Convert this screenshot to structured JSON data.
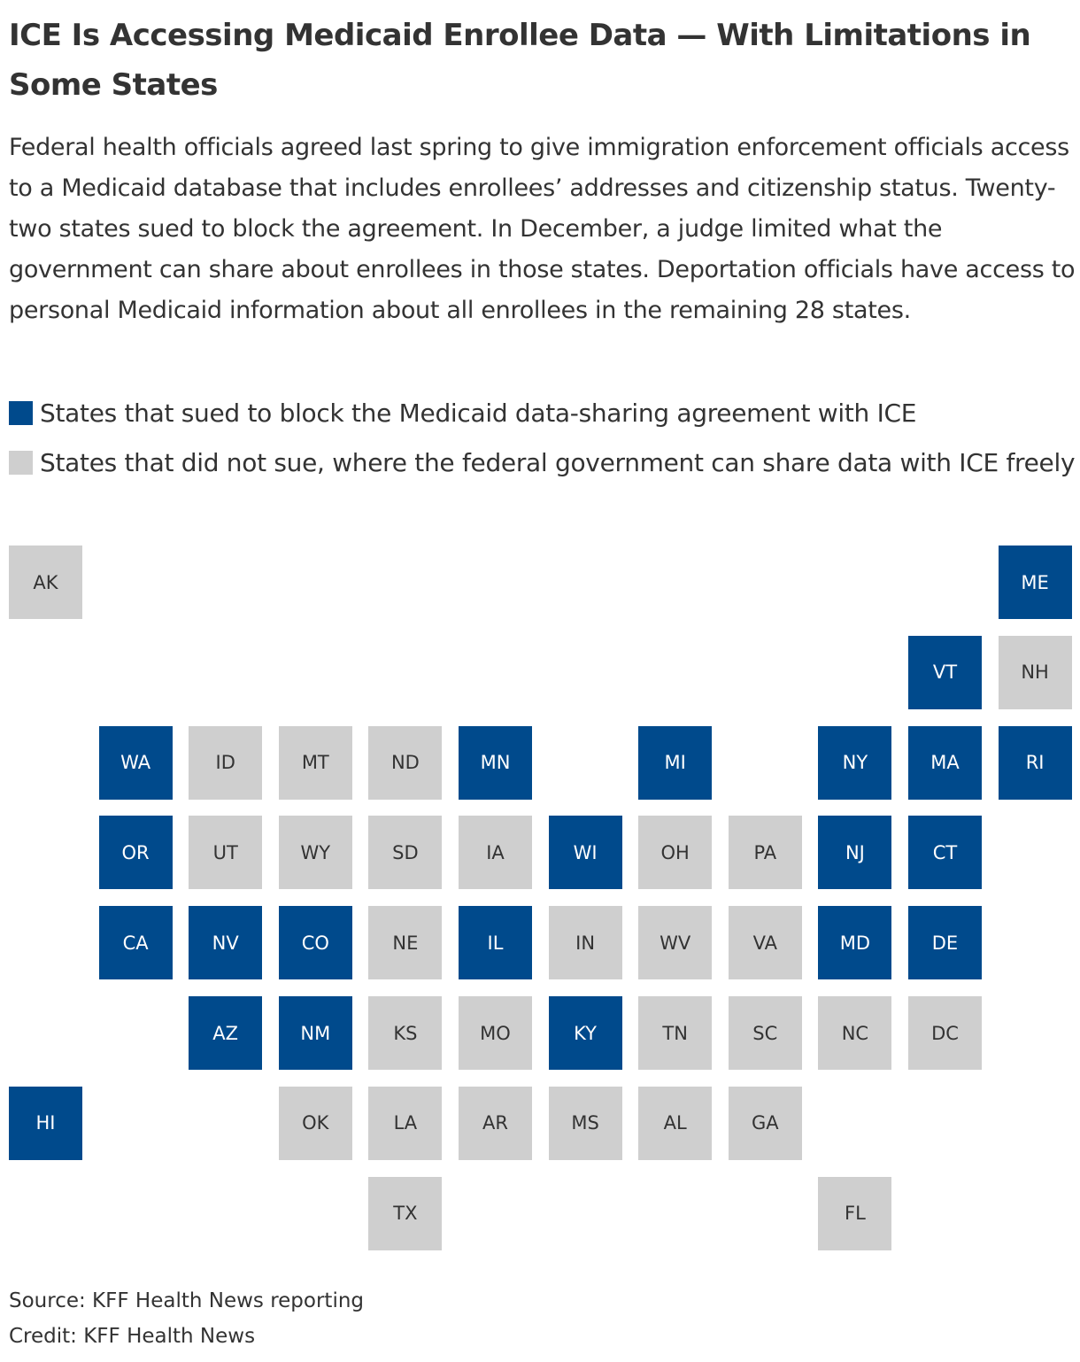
{
  "title": "ICE Is Accessing Medicaid Enrollee Data — With Limitations in Some States",
  "description": "Federal health officials agreed last spring to give immigration enforcement officials access to a Medicaid database that includes enrollees’ addresses and citizenship status. Twenty-two states sued to block the agreement. In December, a judge limited what the government can share about enrollees in those states. Deportation officials have access to personal Medicaid information about all enrollees in the remaining 28 states.",
  "legend": [
    {
      "label": "States that sued to block the Medicaid data-sharing agreement with ICE",
      "color": "#004a8c",
      "text_color": "#ffffff"
    },
    {
      "label": "States that did not sue, where the federal government can share data with ICE freely",
      "color": "#cfcfcf",
      "text_color": "#333333"
    }
  ],
  "tiles": [
    {
      "label": "AK",
      "group": 1
    },
    {
      "label": "ME",
      "group": 0
    },
    {
      "label": "VT",
      "group": 0
    },
    {
      "label": "NH",
      "group": 1
    },
    {
      "label": "WA",
      "group": 0
    },
    {
      "label": "ID",
      "group": 1
    },
    {
      "label": "MT",
      "group": 1
    },
    {
      "label": "ND",
      "group": 1
    },
    {
      "label": "MN",
      "group": 0
    },
    {
      "label": "MI",
      "group": 0
    },
    {
      "label": "NY",
      "group": 0
    },
    {
      "label": "MA",
      "group": 0
    },
    {
      "label": "RI",
      "group": 0
    },
    {
      "label": "OR",
      "group": 0
    },
    {
      "label": "UT",
      "group": 1
    },
    {
      "label": "WY",
      "group": 1
    },
    {
      "label": "SD",
      "group": 1
    },
    {
      "label": "IA",
      "group": 1
    },
    {
      "label": "WI",
      "group": 0
    },
    {
      "label": "OH",
      "group": 1
    },
    {
      "label": "PA",
      "group": 1
    },
    {
      "label": "NJ",
      "group": 0
    },
    {
      "label": "CT",
      "group": 0
    },
    {
      "label": "CA",
      "group": 0
    },
    {
      "label": "NV",
      "group": 0
    },
    {
      "label": "CO",
      "group": 0
    },
    {
      "label": "NE",
      "group": 1
    },
    {
      "label": "IL",
      "group": 0
    },
    {
      "label": "IN",
      "group": 1
    },
    {
      "label": "WV",
      "group": 1
    },
    {
      "label": "VA",
      "group": 1
    },
    {
      "label": "MD",
      "group": 0
    },
    {
      "label": "DE",
      "group": 0
    },
    {
      "label": "AZ",
      "group": 0
    },
    {
      "label": "NM",
      "group": 0
    },
    {
      "label": "KS",
      "group": 1
    },
    {
      "label": "MO",
      "group": 1
    },
    {
      "label": "KY",
      "group": 0
    },
    {
      "label": "TN",
      "group": 1
    },
    {
      "label": "SC",
      "group": 1
    },
    {
      "label": "NC",
      "group": 1
    },
    {
      "label": "DC",
      "group": 1
    },
    {
      "label": "HI",
      "group": 0
    },
    {
      "label": "OK",
      "group": 1
    },
    {
      "label": "LA",
      "group": 1
    },
    {
      "label": "AR",
      "group": 1
    },
    {
      "label": "MS",
      "group": 1
    },
    {
      "label": "AL",
      "group": 1
    },
    {
      "label": "GA",
      "group": 1
    },
    {
      "label": "TX",
      "group": 1
    },
    {
      "label": "FL",
      "group": 1
    }
  ],
  "source": "Source: KFF Health News reporting",
  "credit": "Credit: KFF Health News"
}
